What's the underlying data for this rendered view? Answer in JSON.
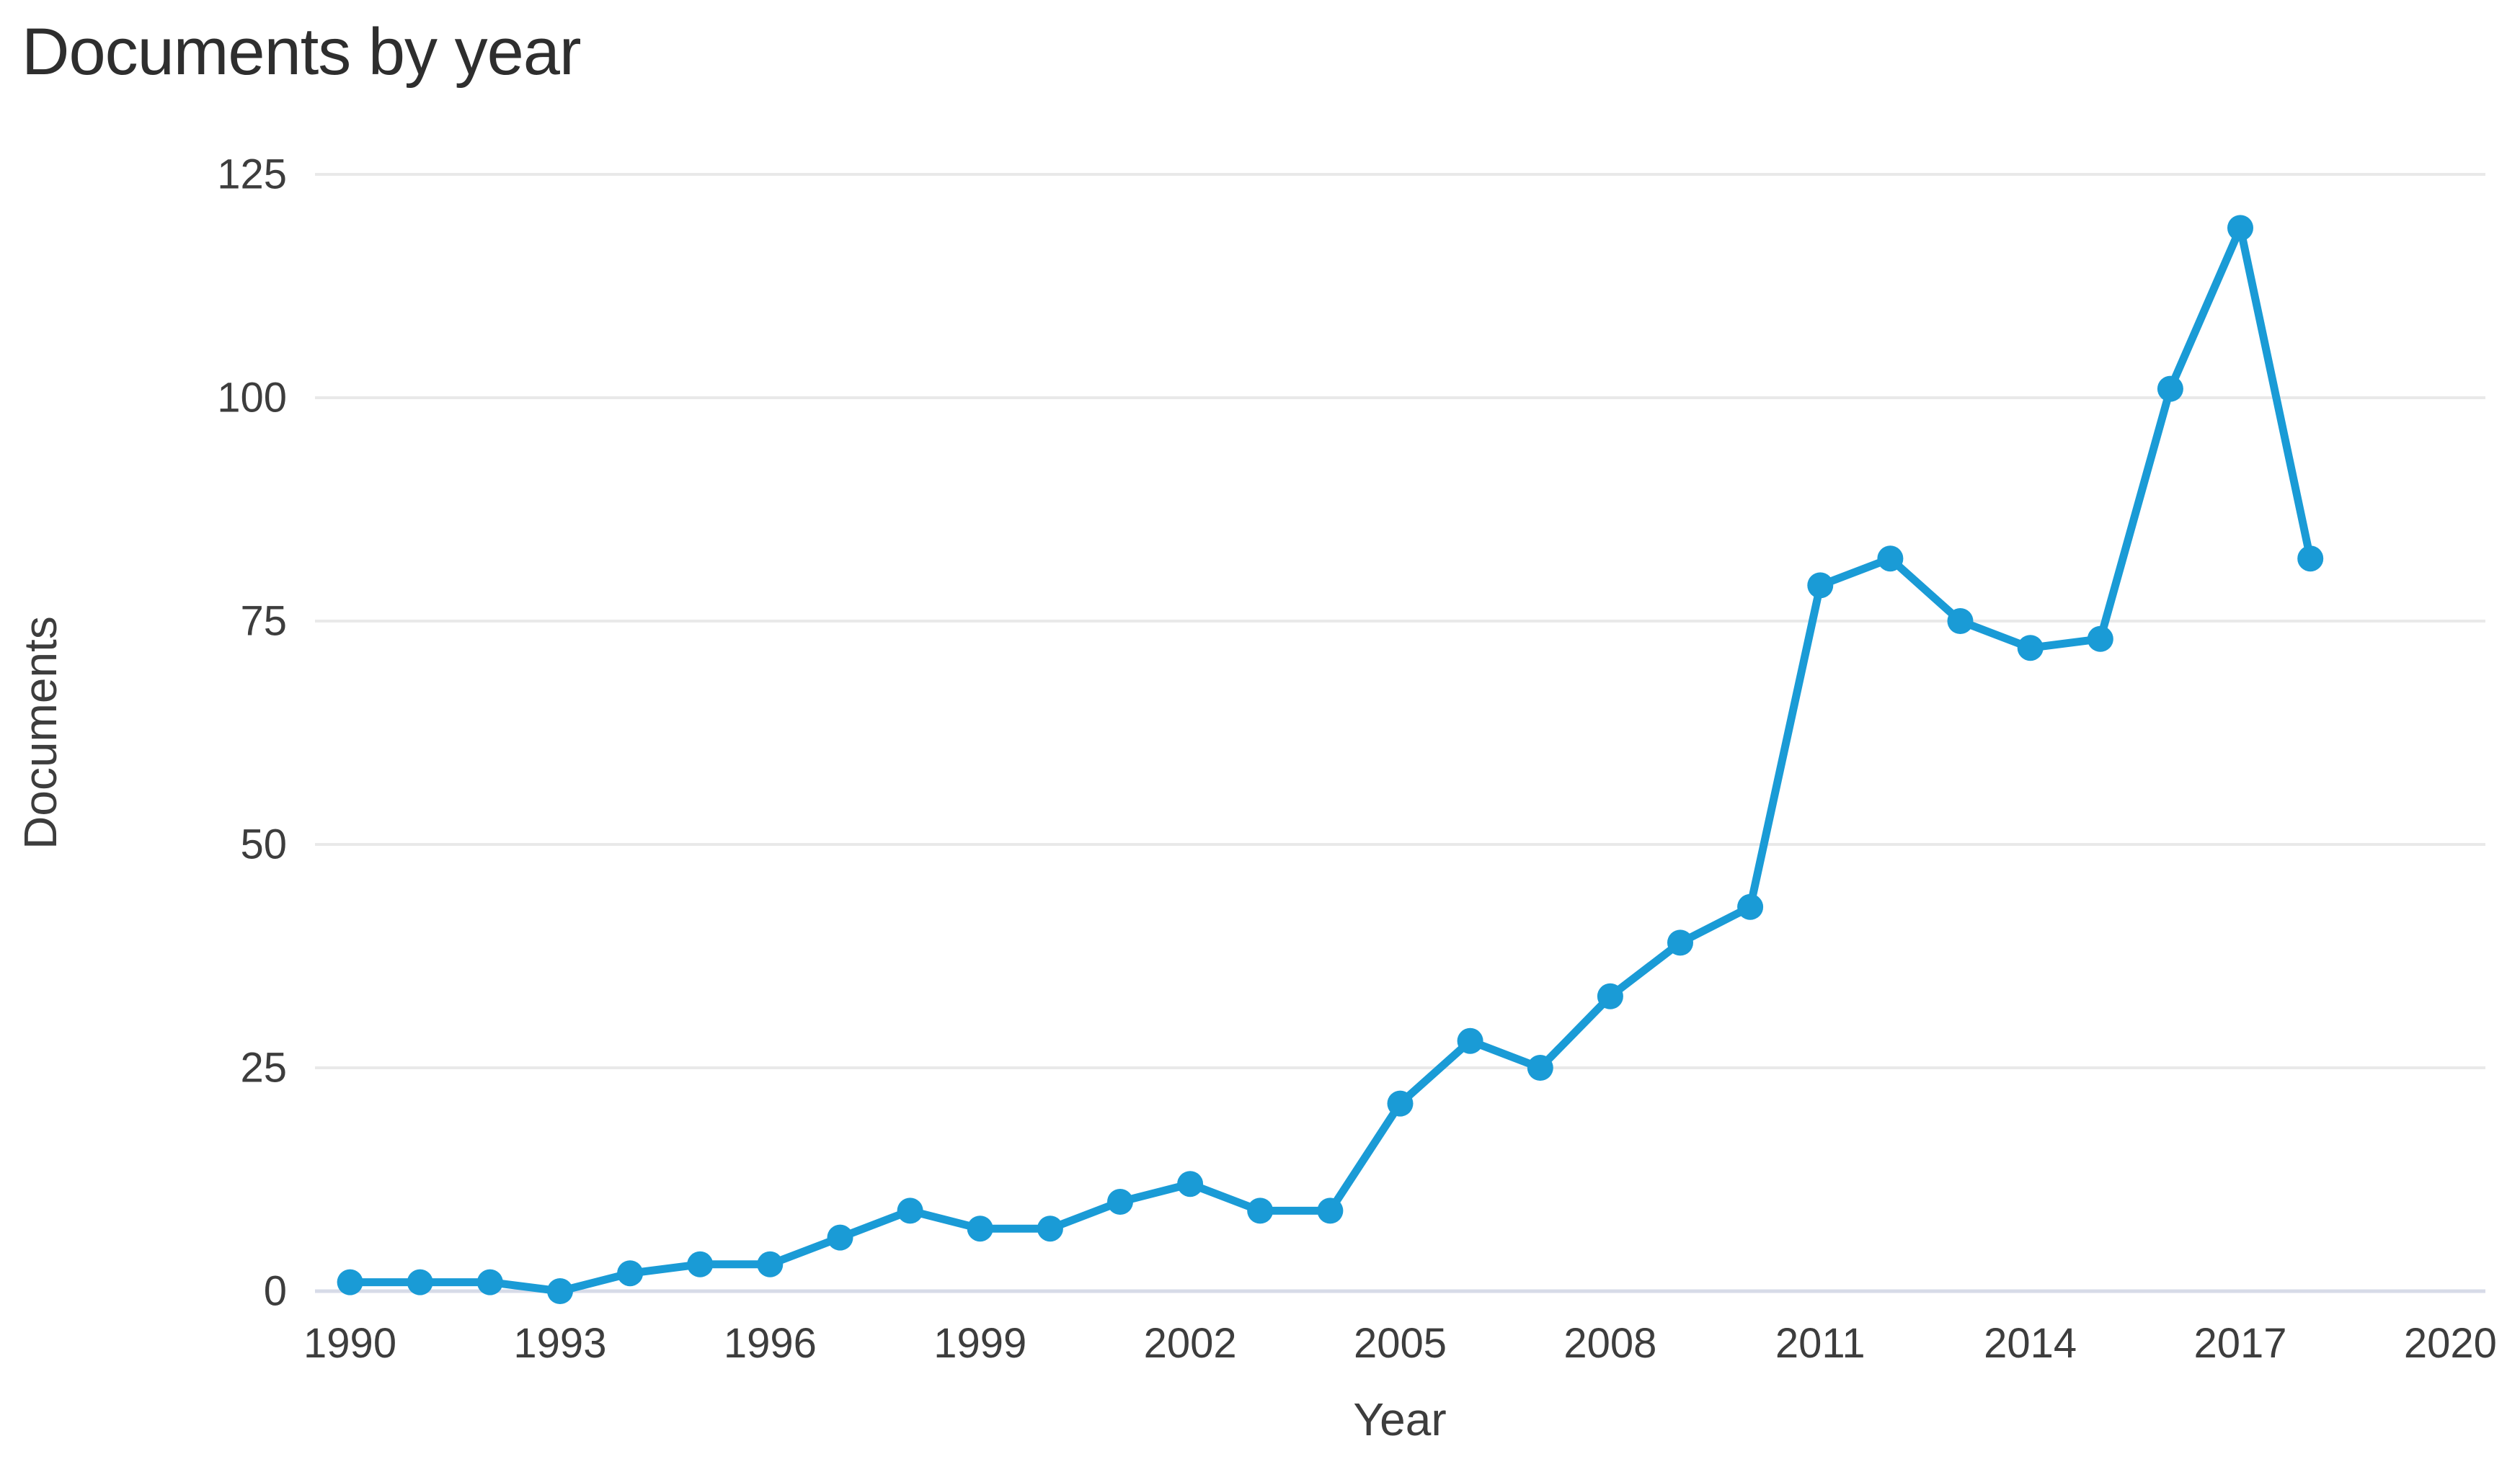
{
  "title": "Documents by year",
  "colors": {
    "line": "#1a9bd6",
    "marker": "#1a9bd6",
    "gridline": "#e9e9e9",
    "baseline": "#d7dbe8",
    "title_text": "#2e2e2e",
    "tick_text": "#3d3d3d",
    "background": "#ffffff"
  },
  "chart_data": {
    "type": "line",
    "title": "Documents by year",
    "xlabel": "Year",
    "ylabel": "Documents",
    "x": [
      1990,
      1991,
      1992,
      1993,
      1994,
      1995,
      1996,
      1997,
      1998,
      1999,
      2000,
      2001,
      2002,
      2003,
      2004,
      2005,
      2006,
      2007,
      2008,
      2009,
      2010,
      2011,
      2012,
      2013,
      2014,
      2015,
      2016,
      2017,
      2018
    ],
    "values": [
      1,
      1,
      1,
      0,
      2,
      3,
      3,
      6,
      9,
      7,
      7,
      10,
      12,
      9,
      9,
      21,
      28,
      25,
      33,
      39,
      43,
      79,
      82,
      75,
      72,
      73,
      101,
      119,
      82
    ],
    "series_name": "Documents",
    "xticks": [
      1990,
      1993,
      1996,
      1999,
      2002,
      2005,
      2008,
      2011,
      2014,
      2017,
      2020
    ],
    "yticks": [
      0,
      25,
      50,
      75,
      100,
      125
    ],
    "xlim": [
      1989.5,
      2020.5
    ],
    "ylim": [
      0,
      125
    ],
    "grid": "horizontal",
    "legend_position": "none",
    "marker": "circle"
  }
}
